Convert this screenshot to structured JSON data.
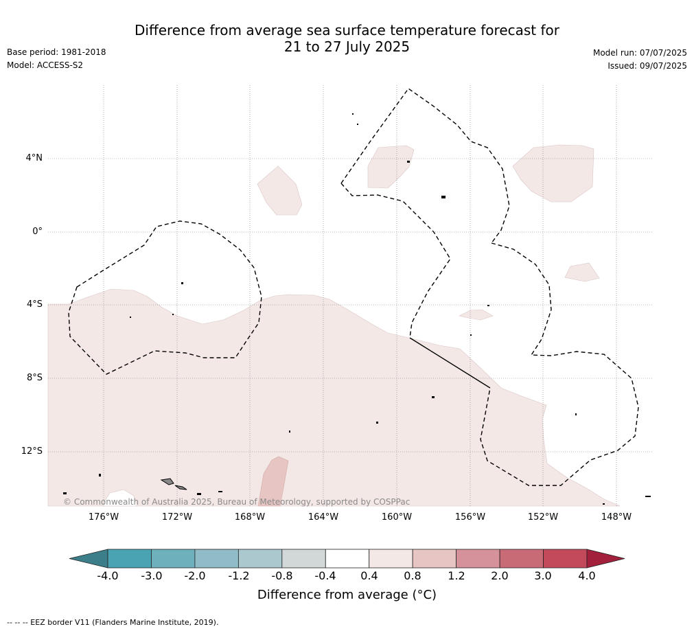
{
  "header": {
    "title_line1": "Difference from average sea surface temperature forecast for",
    "title_line2": "21 to 27 July 2025",
    "base_period": "Base period: 1981-2018",
    "model": "Model: ACCESS-S2",
    "model_run": "Model run: 07/07/2025",
    "issued": "Issued: 09/07/2025"
  },
  "map": {
    "lat_labels": [
      "4°N",
      "0°",
      "4°S",
      "8°S",
      "12°S"
    ],
    "lon_labels": [
      "176°W",
      "172°W",
      "168°W",
      "164°W",
      "160°W",
      "156°W",
      "152°W",
      "148°W"
    ],
    "copyright": "© Commonwealth of Australia 2025, Bureau of Meteorology, supported by COSPPac",
    "anomaly_fill_color": "#f4e8e7",
    "strong_anomaly_color": "#e6c5c2",
    "eez_line_style": "dashed",
    "land_color": "#888888"
  },
  "colorbar": {
    "ticks": [
      "-4.0",
      "-3.0",
      "-2.0",
      "-1.2",
      "-0.8",
      "-0.4",
      "0.4",
      "0.8",
      "1.2",
      "2.0",
      "3.0",
      "4.0"
    ],
    "colors": [
      "#3c7f8a",
      "#4aa3b3",
      "#6fb0bd",
      "#8fbcc6",
      "#abc8ce",
      "#d2d8d8",
      "#ffffff",
      "#f4e8e7",
      "#e6c5c2",
      "#d6929a",
      "#c96b76",
      "#c24a5a",
      "#a3203c"
    ],
    "label": "Difference from average (°C)"
  },
  "footnote": "--  --  -- EEZ border V11 (Flanders Marine Institute, 2019)."
}
